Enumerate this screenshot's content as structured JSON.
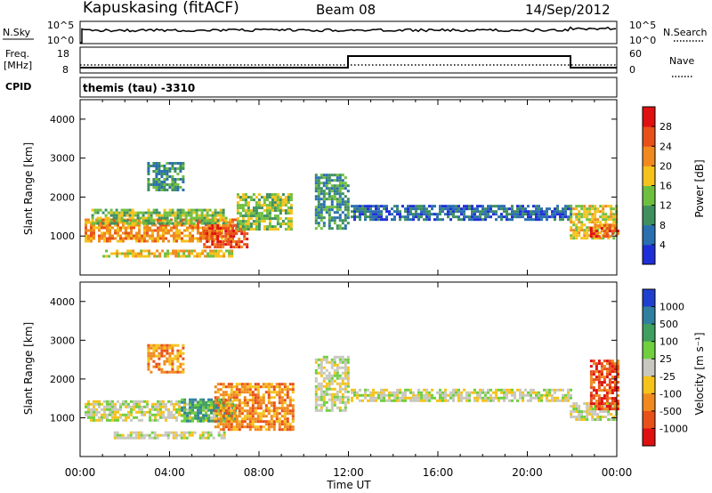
{
  "header": {
    "station": "Kapuskasing (fitACF)",
    "beam": "Beam 08",
    "date": "14/Sep/2012"
  },
  "status_panel": {
    "nsky_label": "N.Sky",
    "nsky_ticks": [
      "10^5",
      "10^0"
    ],
    "nsearch_label": "N.Search",
    "nsearch_ticks": [
      "10^5",
      "10^0"
    ],
    "freq_label": "Freq.",
    "freq_unit": "[MHz]",
    "freq_ticks": [
      "18",
      "8"
    ],
    "nave_label": "Nave",
    "nave_ticks": [
      "60",
      "0"
    ],
    "cpid_label": "CPID",
    "cpid_value": "themis (tau) -3310"
  },
  "chart_data": [
    {
      "type": "heatmap",
      "name": "power",
      "ylabel": "Slant Range [km]",
      "ylim": [
        0,
        4500
      ],
      "yticks": [
        "1000",
        "2000",
        "3000",
        "4000"
      ],
      "x_range_hours": [
        0,
        24
      ],
      "colorbar": {
        "label": "Power [dB]",
        "ticks": [
          "4",
          "8",
          "12",
          "16",
          "20",
          "24",
          "28"
        ],
        "colors": [
          "#1f2fd8",
          "#2a6fb0",
          "#3f8f5f",
          "#6fbf3f",
          "#f5c21b",
          "#f08a1e",
          "#e8501a",
          "#e01010"
        ]
      },
      "regions": [
        {
          "t_start": 0.2,
          "t_end": 7.0,
          "r_low": 900,
          "r_high": 1450,
          "level": 5
        },
        {
          "t_start": 0.5,
          "t_end": 6.5,
          "r_low": 1300,
          "r_high": 1700,
          "level": 3
        },
        {
          "t_start": 1.0,
          "t_end": 6.8,
          "r_low": 450,
          "r_high": 650,
          "level": 4
        },
        {
          "t_start": 3.0,
          "t_end": 4.6,
          "r_low": 2200,
          "r_high": 2900,
          "level": 2
        },
        {
          "t_start": 5.5,
          "t_end": 7.5,
          "r_low": 700,
          "r_high": 1300,
          "level": 6
        },
        {
          "t_start": 7.0,
          "t_end": 9.5,
          "r_low": 1200,
          "r_high": 2100,
          "level": 3
        },
        {
          "t_start": 10.5,
          "t_end": 12.0,
          "r_low": 1200,
          "r_high": 2600,
          "level": 2
        },
        {
          "t_start": 12.1,
          "t_end": 21.9,
          "r_low": 1450,
          "r_high": 1800,
          "level": 1
        },
        {
          "t_start": 21.9,
          "t_end": 24.0,
          "r_low": 950,
          "r_high": 1800,
          "level": 4
        },
        {
          "t_start": 22.8,
          "t_end": 24.0,
          "r_low": 1000,
          "r_high": 1300,
          "level": 6
        }
      ]
    },
    {
      "type": "heatmap",
      "name": "velocity",
      "ylabel": "Slant Range [km]",
      "ylim": [
        0,
        4500
      ],
      "yticks": [
        "1000",
        "2000",
        "3000",
        "4000"
      ],
      "x_range_hours": [
        0,
        24
      ],
      "xticks": [
        "00:00",
        "04:00",
        "08:00",
        "12:00",
        "16:00",
        "20:00",
        "00:00"
      ],
      "xlabel": "Time UT",
      "colorbar": {
        "label": "Velocity [m s⁻¹]",
        "ticks": [
          "1000",
          "500",
          "100",
          "25",
          "-25",
          "-100",
          "-500",
          "-1000"
        ],
        "colors": [
          "#1f3fd0",
          "#2f7f9f",
          "#3f9f5f",
          "#6fcf3f",
          "#c8c8c0",
          "#f5c31b",
          "#f08a1e",
          "#e8501a",
          "#e01010"
        ]
      },
      "regions": [
        {
          "t_start": 0.2,
          "t_end": 7.0,
          "r_low": 950,
          "r_high": 1450,
          "level": 4
        },
        {
          "t_start": 1.5,
          "t_end": 6.5,
          "r_low": 480,
          "r_high": 650,
          "level": 4
        },
        {
          "t_start": 3.0,
          "t_end": 4.6,
          "r_low": 2200,
          "r_high": 2900,
          "level": 6
        },
        {
          "t_start": 4.5,
          "t_end": 7.0,
          "r_low": 900,
          "r_high": 1500,
          "level": 2
        },
        {
          "t_start": 6.0,
          "t_end": 9.5,
          "r_low": 700,
          "r_high": 1900,
          "level": 6
        },
        {
          "t_start": 10.5,
          "t_end": 12.0,
          "r_low": 1200,
          "r_high": 2600,
          "level": 4
        },
        {
          "t_start": 12.1,
          "t_end": 21.9,
          "r_low": 1450,
          "r_high": 1750,
          "level": 4
        },
        {
          "t_start": 21.9,
          "t_end": 24.0,
          "r_low": 950,
          "r_high": 1400,
          "level": 4
        },
        {
          "t_start": 22.8,
          "t_end": 24.0,
          "r_low": 1200,
          "r_high": 2500,
          "level": 7
        }
      ]
    }
  ]
}
